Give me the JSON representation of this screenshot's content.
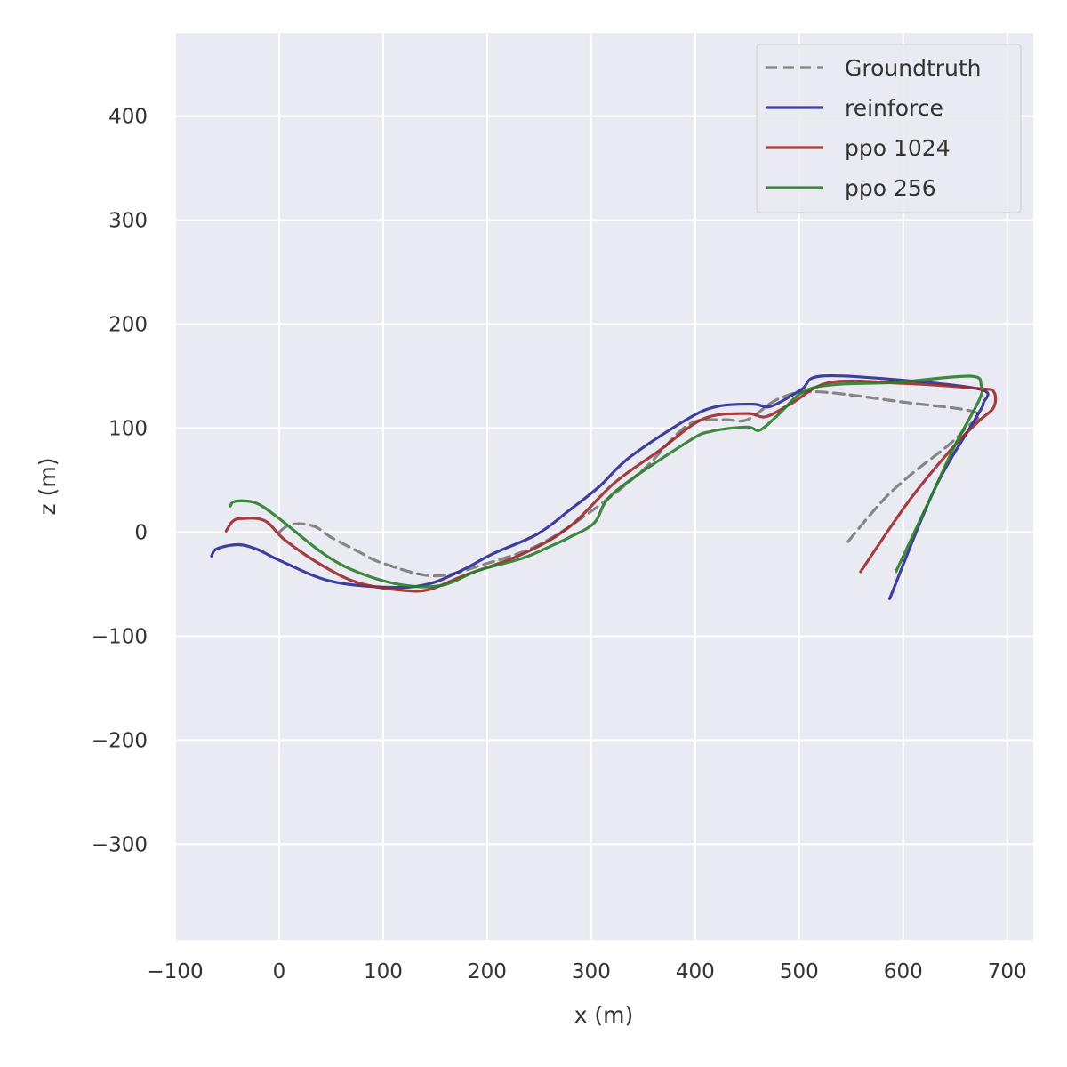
{
  "chart_data": {
    "type": "line",
    "title": "",
    "xlabel": "x (m)",
    "ylabel": "z (m)",
    "xlim": [
      -100,
      725
    ],
    "ylim": [
      -392,
      480
    ],
    "xticks": [
      -100,
      0,
      100,
      200,
      300,
      400,
      500,
      600,
      700
    ],
    "yticks": [
      -300,
      -200,
      -100,
      0,
      100,
      200,
      300,
      400
    ],
    "xtick_labels": [
      "−100",
      "0",
      "100",
      "200",
      "300",
      "400",
      "500",
      "600",
      "700"
    ],
    "ytick_labels": [
      "−300",
      "−200",
      "−100",
      "0",
      "100",
      "200",
      "300",
      "400"
    ],
    "grid": true,
    "background": "#eaeaf2",
    "legend_position": "top-right",
    "series": [
      {
        "name": "Groundtruth",
        "color": "#7a7a7a",
        "dashed": true,
        "x": [
          0,
          8,
          20,
          35,
          50,
          75,
          100,
          150,
          200,
          250,
          300,
          350,
          393,
          427,
          450,
          480,
          516,
          600,
          670,
          660,
          644,
          607,
          580,
          547
        ],
        "z": [
          0,
          6,
          8,
          5,
          -5,
          -18,
          -30,
          -42,
          -30,
          -12,
          20,
          60,
          103,
          108,
          108,
          128,
          135,
          125,
          115,
          100,
          84,
          55,
          30,
          -9
        ]
      },
      {
        "name": "reinforce",
        "color": "#2b2b96",
        "x": [
          -65,
          -60,
          -39,
          -20,
          0,
          49,
          106,
          143,
          177,
          205,
          248,
          279,
          308,
          337,
          393,
          422,
          456,
          473,
          502,
          521,
          600,
          675,
          677,
          670,
          630,
          587
        ],
        "z": [
          -23,
          -16,
          -12,
          -17,
          -27,
          -47,
          -53,
          -50,
          -36,
          -21,
          -2,
          21,
          44,
          72,
          109,
          121,
          123,
          121,
          137,
          150,
          146,
          137,
          124,
          110,
          41,
          -64
        ]
      },
      {
        "name": "ppo 1024",
        "color": "#9b2a2a",
        "x": [
          -51,
          -45,
          -37,
          -14,
          6,
          43,
          77,
          120,
          145,
          177,
          234,
          279,
          322,
          365,
          408,
          450,
          468,
          493,
          530,
          600,
          673,
          687,
          687,
          673,
          650,
          607,
          559
        ],
        "z": [
          1,
          10,
          13,
          11,
          -8,
          -33,
          -49,
          -56,
          -55,
          -42,
          -21,
          5,
          47,
          78,
          109,
          114,
          111,
          124,
          144,
          143,
          138,
          135,
          120,
          107,
          84,
          32,
          -38
        ]
      },
      {
        "name": "ppo 256",
        "color": "#2a7d2a",
        "x": [
          -47,
          -44,
          -34,
          -20,
          0,
          43,
          77,
          120,
          157,
          191,
          234,
          262,
          279,
          303,
          322,
          393,
          416,
          450,
          462,
          479,
          504,
          536,
          593,
          664,
          675,
          673,
          650,
          630,
          593
        ],
        "z": [
          25,
          29,
          30,
          27,
          13,
          -21,
          -39,
          -51,
          -51,
          -37,
          -25,
          -13,
          -5,
          9,
          38,
          87,
          97,
          101,
          98,
          112,
          135,
          142,
          144,
          150,
          141,
          127,
          84,
          41,
          -38
        ]
      }
    ]
  }
}
